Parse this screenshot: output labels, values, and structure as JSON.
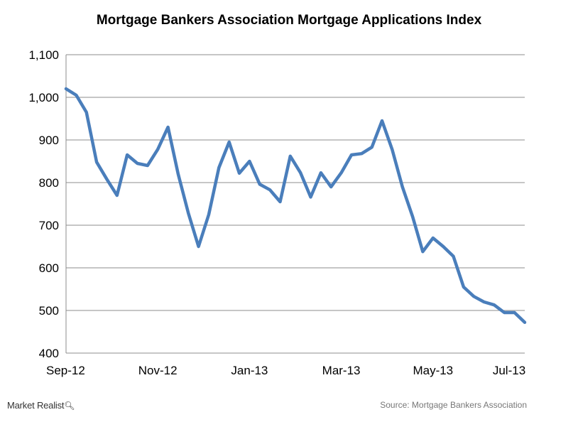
{
  "chart_data": {
    "type": "line",
    "title": "Mortgage Bankers Association Mortgage Applications Index",
    "xlabel": "",
    "ylabel": "",
    "ylim": [
      400,
      1100
    ],
    "yticks": [
      "400",
      "500",
      "600",
      "700",
      "800",
      "900",
      "1,000",
      "1,100"
    ],
    "xtick_labels": [
      "Sep-12",
      "Nov-12",
      "Jan-13",
      "Mar-13",
      "May-13",
      "Jul-13"
    ],
    "grid": true,
    "series": [
      {
        "color": "#4a7ebb",
        "values": [
          1020,
          1005,
          965,
          848,
          808,
          770,
          865,
          845,
          840,
          878,
          930,
          820,
          728,
          650,
          725,
          835,
          895,
          822,
          850,
          796,
          783,
          755,
          862,
          823,
          766,
          823,
          790,
          823,
          865,
          868,
          883,
          945,
          877,
          790,
          720,
          638,
          670,
          650,
          627,
          555,
          533,
          520,
          513,
          495,
          495,
          472
        ]
      }
    ]
  },
  "footer": {
    "brand": "Market Realist",
    "brand_icon": "magnifier-icon",
    "source": "Source: Mortgage Bankers Association"
  }
}
